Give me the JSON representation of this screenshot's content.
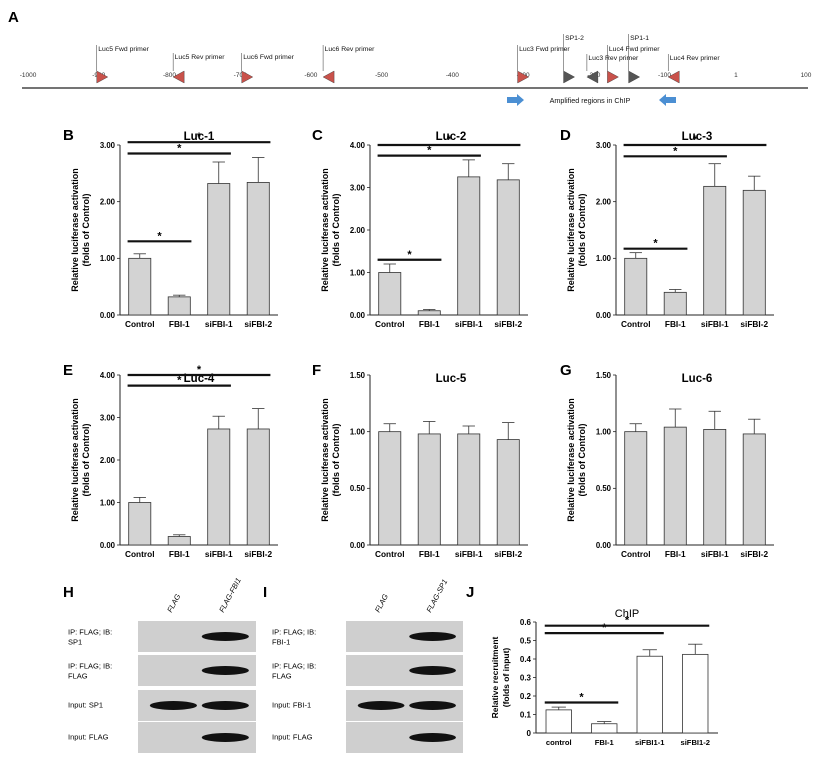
{
  "panel_letters": [
    "A",
    "B",
    "C",
    "D",
    "E",
    "F",
    "G",
    "H",
    "I",
    "J"
  ],
  "map": {
    "ticks": [
      -1000,
      -900,
      -800,
      -700,
      -600,
      -500,
      -400,
      -300,
      -200,
      -100,
      1,
      100
    ],
    "tick_labels": [
      "-1000",
      "-900",
      "-800",
      "-700",
      "-600",
      "-500",
      "-400",
      "-300",
      "-200",
      "-100",
      "1",
      "100"
    ],
    "features": [
      {
        "label": "Luc5 Fwd primer",
        "pos": -895,
        "dir": "right",
        "color": "#c9524b"
      },
      {
        "label": "Luc5 Rev primer",
        "pos": -787,
        "dir": "left",
        "color": "#c9524b"
      },
      {
        "label": "Luc6 Rev primer",
        "pos": -575,
        "dir": "left",
        "color": "#c9524b"
      },
      {
        "label": "Luc6 Fwd primer",
        "pos": -690,
        "dir": "right",
        "color": "#c9524b"
      },
      {
        "label": "Luc3 Fwd primer",
        "pos": -300,
        "dir": "right",
        "color": "#c9524b"
      },
      {
        "label": "SP1-2",
        "pos": -235,
        "dir": "right",
        "color": "#555555"
      },
      {
        "label": "Luc3 Rev primer",
        "pos": -202,
        "dir": "left",
        "color": "#555555"
      },
      {
        "label": "Luc4 Fwd primer",
        "pos": -173,
        "dir": "right",
        "color": "#c9524b"
      },
      {
        "label": "SP1-1",
        "pos": -143,
        "dir": "right",
        "color": "#555555"
      },
      {
        "label": "Luc4 Rev primer",
        "pos": -87,
        "dir": "left",
        "color": "#c9524b"
      }
    ],
    "chip_label": "Amplified regions in ChIP"
  },
  "charts": [
    {
      "letter": "B",
      "title": "Luc-1",
      "ylabel": [
        "Relative luciferase activation",
        "(folds of Control)"
      ],
      "ylim": [
        0,
        3
      ],
      "yticks": [
        "0.00",
        "1.00",
        "2.00",
        "3.00"
      ],
      "categories": [
        "Control",
        "FBI-1",
        "siFBI-1",
        "siFBI-2"
      ],
      "values": [
        1.0,
        0.32,
        2.32,
        2.34
      ],
      "errors": [
        0.08,
        0.03,
        0.38,
        0.44
      ],
      "sig": [
        {
          "from": 0,
          "to": 1,
          "y": 1.3
        },
        {
          "from": 0,
          "to": 2,
          "y": 2.85
        },
        {
          "from": 0,
          "to": 3,
          "y": 3.05
        }
      ],
      "star": "*"
    },
    {
      "letter": "C",
      "title": "Luc-2",
      "ylabel": [
        "Relative luciferase activation",
        "(folds of Control)"
      ],
      "ylim": [
        0,
        4
      ],
      "yticks": [
        "0.00",
        "1.00",
        "2.00",
        "3.00",
        "4.00"
      ],
      "categories": [
        "Control",
        "FBI-1",
        "siFBI-1",
        "siFBI-2"
      ],
      "values": [
        1.0,
        0.1,
        3.25,
        3.18
      ],
      "errors": [
        0.2,
        0.03,
        0.4,
        0.38
      ],
      "sig": [
        {
          "from": 0,
          "to": 1,
          "y": 1.3
        },
        {
          "from": 0,
          "to": 2,
          "y": 3.75
        },
        {
          "from": 0,
          "to": 3,
          "y": 4.0
        }
      ],
      "star": "*"
    },
    {
      "letter": "D",
      "title": "Luc-3",
      "ylabel": [
        "Relative luciferase activation",
        "(folds of Control)"
      ],
      "ylim": [
        0,
        3
      ],
      "yticks": [
        "0.00",
        "1.00",
        "2.00",
        "3.00"
      ],
      "categories": [
        "Control",
        "FBI-1",
        "siFBI-1",
        "siFBI-2"
      ],
      "values": [
        1.0,
        0.4,
        2.27,
        2.2
      ],
      "errors": [
        0.1,
        0.05,
        0.4,
        0.25
      ],
      "sig": [
        {
          "from": 0,
          "to": 1,
          "y": 1.17
        },
        {
          "from": 0,
          "to": 2,
          "y": 2.8
        },
        {
          "from": 0,
          "to": 3,
          "y": 3.0
        }
      ],
      "star": "*"
    },
    {
      "letter": "E",
      "title": "Luc-4",
      "ylabel": [
        "Relative luciferase activation",
        "(folds of Control)"
      ],
      "ylim": [
        0,
        4
      ],
      "yticks": [
        "0.00",
        "1.00",
        "2.00",
        "3.00",
        "4.00"
      ],
      "categories": [
        "Control",
        "FBI-1",
        "siFBI-1",
        "siFBI-2"
      ],
      "values": [
        1.0,
        0.2,
        2.73,
        2.73
      ],
      "errors": [
        0.12,
        0.04,
        0.3,
        0.48
      ],
      "sig": [
        {
          "from": 0,
          "to": 2,
          "y": 3.75
        },
        {
          "from": 0,
          "to": 3,
          "y": 4.0
        }
      ],
      "star": "*"
    },
    {
      "letter": "F",
      "title": "Luc-5",
      "ylabel": [
        "Relative luciferase activation",
        "(folds of Control)"
      ],
      "ylim": [
        0,
        1.5
      ],
      "yticks": [
        "0.00",
        "0.50",
        "1.00",
        "1.50"
      ],
      "categories": [
        "Control",
        "FBI-1",
        "siFBI-1",
        "siFBI-2"
      ],
      "values": [
        1.0,
        0.98,
        0.98,
        0.93
      ],
      "errors": [
        0.07,
        0.11,
        0.07,
        0.15
      ],
      "sig": [],
      "star": "*"
    },
    {
      "letter": "G",
      "title": "Luc-6",
      "ylabel": [
        "Relative luciferase activation",
        "(folds of Control)"
      ],
      "ylim": [
        0,
        1.5
      ],
      "yticks": [
        "0.00",
        "0.50",
        "1.00",
        "1.50"
      ],
      "categories": [
        "Control",
        "FBI-1",
        "siFBI-1",
        "siFBI-2"
      ],
      "values": [
        1.0,
        1.04,
        1.02,
        0.98
      ],
      "errors": [
        0.07,
        0.16,
        0.16,
        0.13
      ],
      "sig": [],
      "star": "*"
    },
    {
      "letter": "J",
      "title": "ChIP",
      "ylabel": [
        "Relative recruitment",
        "(folds of input)"
      ],
      "ylim": [
        0,
        0.6
      ],
      "yticks": [
        "0",
        "0.1",
        "0.2",
        "0.3",
        "0.4",
        "0.5",
        "0.6"
      ],
      "categories": [
        "control",
        "FBI-1",
        "siFBI1-1",
        "siFBI1-2"
      ],
      "values": [
        0.125,
        0.05,
        0.415,
        0.425
      ],
      "errors": [
        0.015,
        0.012,
        0.035,
        0.055
      ],
      "sig": [
        {
          "from": 0,
          "to": 1,
          "y": 0.165
        },
        {
          "from": 0,
          "to": 2,
          "y": 0.54
        },
        {
          "from": 0,
          "to": 3,
          "y": 0.58
        }
      ],
      "star": "*",
      "bar_fill": "#ffffff"
    }
  ],
  "blots": [
    {
      "letter": "H",
      "lanes": [
        "FLAG",
        "FLAG-FBI1"
      ],
      "rows": [
        {
          "label": "IP: FLAG; IB: SP1",
          "bands": [
            0,
            1
          ]
        },
        {
          "label": "IP: FLAG; IB: FLAG",
          "bands": [
            0,
            1
          ]
        },
        {
          "label": "Input: SP1",
          "bands": [
            1,
            1
          ]
        },
        {
          "label": "Input: FLAG",
          "bands": [
            0,
            1
          ]
        }
      ]
    },
    {
      "letter": "I",
      "lanes": [
        "FLAG",
        "FLAG-SP1"
      ],
      "rows": [
        {
          "label": "IP: FLAG; IB: FBI-1",
          "bands": [
            0,
            1
          ]
        },
        {
          "label": "IP: FLAG; IB: FLAG",
          "bands": [
            0,
            1
          ]
        },
        {
          "label": "Input: FBI-1",
          "bands": [
            1,
            1
          ]
        },
        {
          "label": "Input: FLAG",
          "bands": [
            0,
            1
          ]
        }
      ]
    }
  ]
}
